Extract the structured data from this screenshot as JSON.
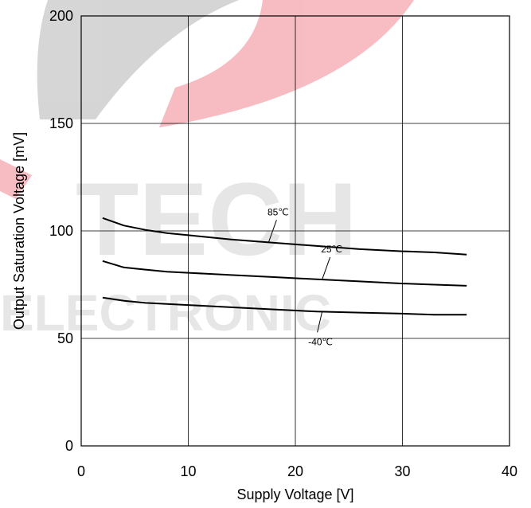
{
  "chart_data": {
    "type": "line",
    "xlabel": "Supply Voltage [V]",
    "ylabel": "Output Saturation Voltage [mV]",
    "xlim": [
      0,
      40
    ],
    "ylim": [
      0,
      200
    ],
    "x_ticks": [
      "0",
      "10",
      "20",
      "30",
      "40"
    ],
    "y_ticks": [
      "0",
      "50",
      "100",
      "150",
      "200"
    ],
    "grid": true,
    "series": [
      {
        "name": "85℃",
        "x": [
          2,
          4,
          6,
          8,
          10,
          14,
          18,
          22,
          26,
          30,
          33,
          36
        ],
        "y": [
          106,
          102.5,
          100.5,
          99,
          98,
          96,
          94.5,
          93,
          91.5,
          90.5,
          90,
          89
        ]
      },
      {
        "name": "25℃",
        "x": [
          2,
          4,
          6,
          8,
          10,
          14,
          18,
          22,
          26,
          30,
          33,
          36
        ],
        "y": [
          86,
          83,
          82,
          81,
          80.5,
          79.5,
          78.5,
          77.5,
          76.5,
          75.5,
          75,
          74.5
        ]
      },
      {
        "name": "-40℃",
        "x": [
          2,
          4,
          6,
          8,
          10,
          14,
          18,
          22,
          26,
          30,
          33,
          36
        ],
        "y": [
          69,
          67.5,
          66.5,
          66,
          65.5,
          64.5,
          63.5,
          62.5,
          62,
          61.5,
          61,
          61
        ]
      }
    ],
    "annotations": [
      {
        "text": "85℃",
        "series": 0,
        "at_x": 17.5
      },
      {
        "text": "25℃",
        "series": 1,
        "at_x": 22.5
      },
      {
        "text": "-40℃",
        "series": 2,
        "at_x": 22.5
      }
    ],
    "watermark": {
      "word1": "TECH",
      "word2": "ELECTRONIC",
      "colors": {
        "red": "#e9414f",
        "gray": "#8a8a8a"
      }
    }
  }
}
